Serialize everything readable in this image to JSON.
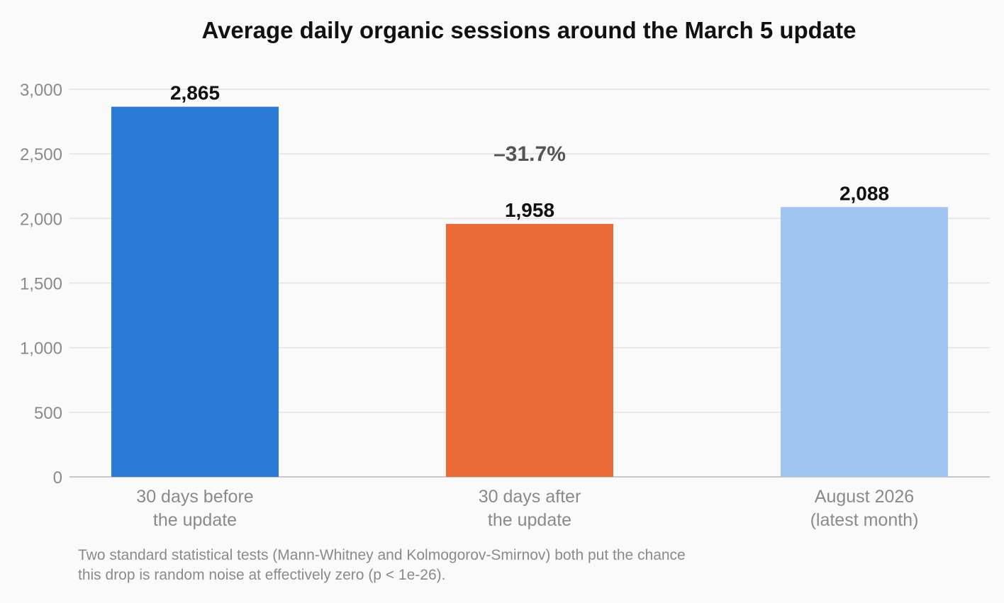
{
  "chart_data": {
    "type": "bar",
    "title": "Average daily organic sessions around the March 5 update",
    "categories": [
      [
        "30 days before",
        "the update"
      ],
      [
        "30 days after",
        "the update"
      ],
      [
        "August 2026",
        "(latest month)"
      ]
    ],
    "values": [
      2865,
      1958,
      2088
    ],
    "value_labels": [
      "2,865",
      "1,958",
      "2,088"
    ],
    "colors": [
      "#2979d6",
      "#ea6a38",
      "#a1c5f1"
    ],
    "ylim": [
      0,
      3000
    ],
    "yticks": [
      0,
      500,
      1000,
      1500,
      2000,
      2500,
      3000
    ],
    "ytick_labels": [
      "0",
      "500",
      "1,000",
      "1,500",
      "2,000",
      "2,500",
      "3,000"
    ],
    "grid": true,
    "annotation": {
      "text": "–31.7%",
      "category_index": 1,
      "y": 2500
    },
    "xlabel": "",
    "ylabel": ""
  },
  "footnote": {
    "line1": "Two standard statistical tests (Mann-Whitney and Kolmogorov-Smirnov) both put the chance",
    "line2": "this drop is random noise at effectively zero (p < 1e-26)."
  }
}
